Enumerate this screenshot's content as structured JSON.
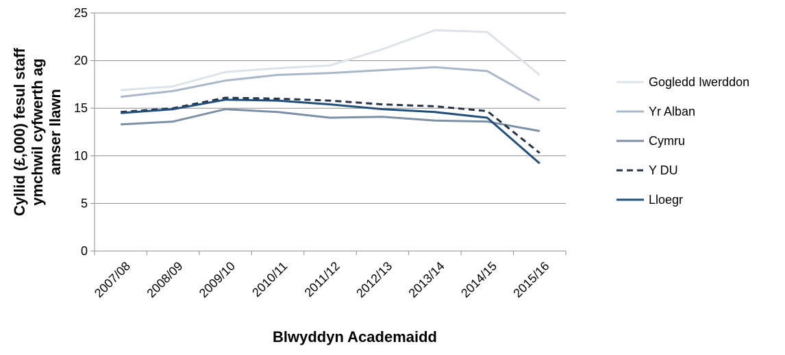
{
  "chart_data": {
    "type": "line",
    "title": "",
    "xlabel": "Blwyddyn Academaidd",
    "ylabel": "Cyllid (£,000) fesul staff ymchwil cyfwerth ag amser llawn",
    "ylabel_lines": [
      "Cyllid (£,000) fesul staff",
      "ymchwil cyfwerth ag",
      "amser llawn"
    ],
    "ylim": [
      0,
      25
    ],
    "yticks": [
      0,
      5,
      10,
      15,
      20,
      25
    ],
    "ytick_labels": [
      "0",
      "5",
      "10",
      "15",
      "20",
      "25"
    ],
    "grid": true,
    "legend_position": "right",
    "categories": [
      "2007/08",
      "2008/09",
      "2009/10",
      "2010/11",
      "2011/12",
      "2012/13",
      "2013/14",
      "2014/15",
      "2015/16"
    ],
    "series": [
      {
        "name": "Gogledd Iwerddon",
        "color": "#dde3ea",
        "dash": false,
        "values": [
          16.9,
          17.3,
          18.8,
          19.2,
          19.5,
          21.2,
          23.2,
          23.0,
          18.5
        ]
      },
      {
        "name": "Yr Alban",
        "color": "#a8b8ca",
        "dash": false,
        "values": [
          16.2,
          16.8,
          17.9,
          18.5,
          18.7,
          19.0,
          19.3,
          18.9,
          15.8
        ]
      },
      {
        "name": "Cymru",
        "color": "#7b8fa5",
        "dash": false,
        "values": [
          13.3,
          13.6,
          14.9,
          14.6,
          14.0,
          14.1,
          13.7,
          13.6,
          12.6
        ]
      },
      {
        "name": "Y DU",
        "color": "#253347",
        "dash": true,
        "values": [
          14.6,
          15.0,
          16.1,
          16.0,
          15.8,
          15.4,
          15.2,
          14.7,
          10.3
        ]
      },
      {
        "name": "Lloegr",
        "color": "#1f4f7a",
        "dash": false,
        "values": [
          14.5,
          14.9,
          15.9,
          15.8,
          15.4,
          14.9,
          14.6,
          14.0,
          9.2
        ]
      }
    ]
  }
}
